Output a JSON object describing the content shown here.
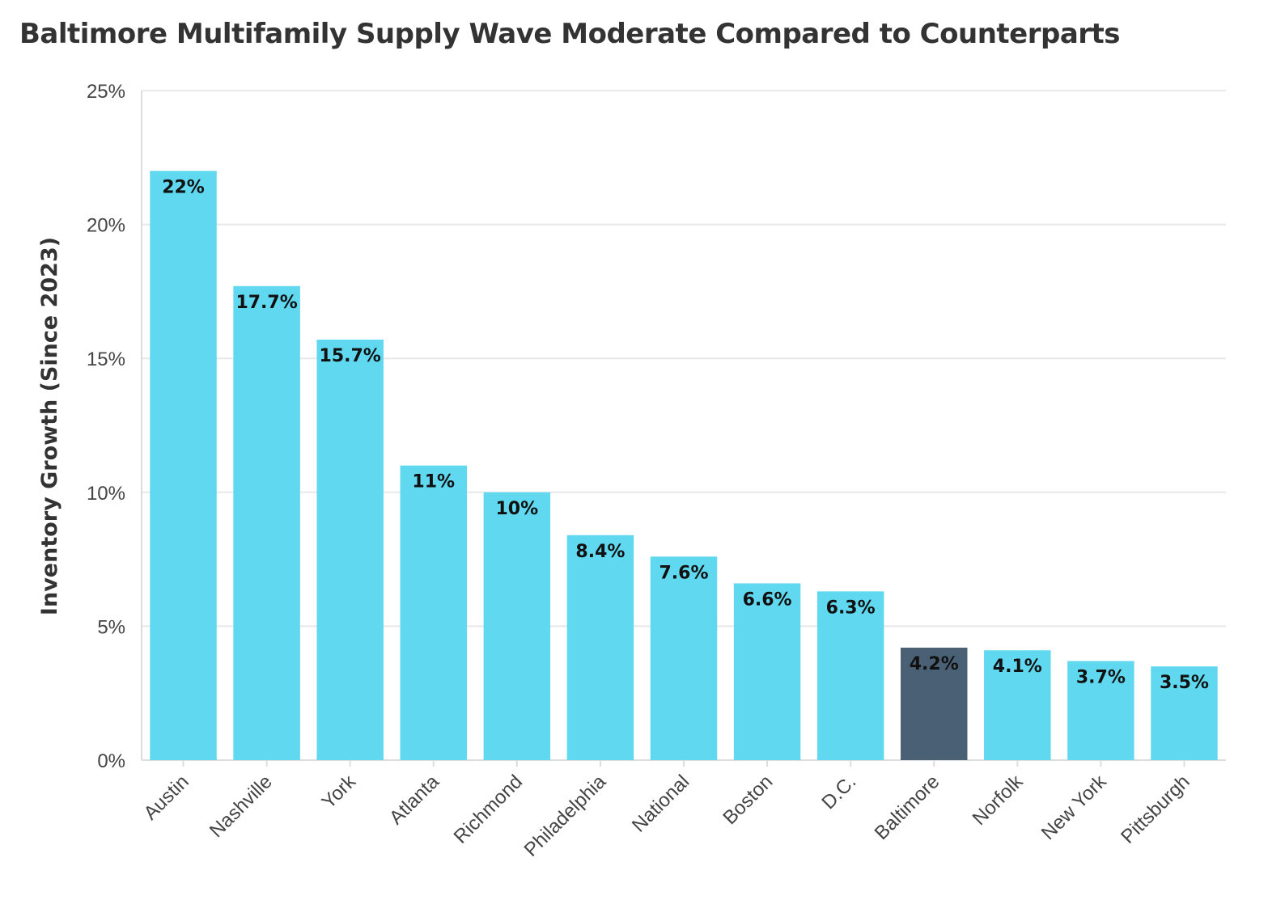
{
  "chart_data": {
    "type": "bar",
    "title": "Baltimore Multifamily Supply Wave Moderate Compared to Counterparts",
    "xlabel": "",
    "ylabel": "Inventory Growth (Since 2023)",
    "ylim": [
      0,
      25
    ],
    "yticks": [
      0,
      5,
      10,
      15,
      20,
      25
    ],
    "ytick_labels": [
      "0%",
      "5%",
      "10%",
      "15%",
      "20%",
      "25%"
    ],
    "grid": true,
    "categories": [
      "Austin",
      "Nashville",
      "York",
      "Atlanta",
      "Richmond",
      "Philadelphia",
      "National",
      "Boston",
      "D.C.",
      "Baltimore",
      "Norfolk",
      "New York",
      "Pittsburgh"
    ],
    "values": [
      22,
      17.7,
      15.7,
      11,
      10,
      8.4,
      7.6,
      6.6,
      6.3,
      4.2,
      4.1,
      3.7,
      3.5
    ],
    "data_labels": [
      "22%",
      "17.7%",
      "15.7%",
      "11%",
      "10%",
      "8.4%",
      "7.6%",
      "6.6%",
      "6.3%",
      "4.2%",
      "4.1%",
      "3.7%",
      "3.5%"
    ],
    "highlight_category": "Baltimore",
    "colors": {
      "bar": "#5fd8f0",
      "highlight": "#4a6175",
      "label": "#111111",
      "highlight_label": "#ffffff"
    }
  }
}
